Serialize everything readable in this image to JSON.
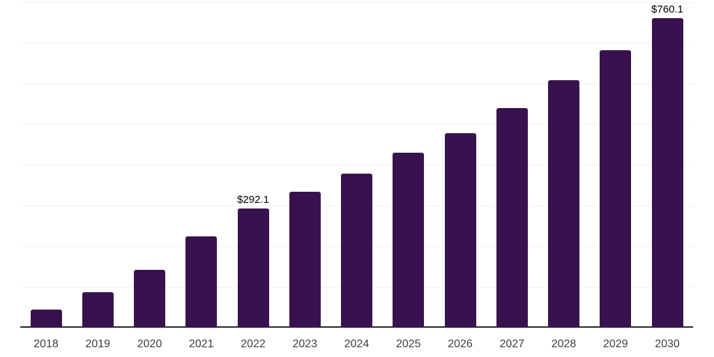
{
  "chart_data": {
    "type": "bar",
    "title": "",
    "xlabel": "",
    "ylabel": "",
    "categories": [
      "2018",
      "2019",
      "2020",
      "2021",
      "2022",
      "2023",
      "2024",
      "2025",
      "2026",
      "2027",
      "2028",
      "2029",
      "2030"
    ],
    "values": [
      45,
      87,
      142,
      224,
      292.1,
      334,
      378,
      430,
      478,
      540,
      608,
      681,
      760.1
    ],
    "data_labels": {
      "4": "$292.1",
      "12": "$760.1"
    },
    "ylim": [
      0,
      800
    ],
    "gridline_values": [
      100,
      200,
      300,
      400,
      500,
      600,
      700,
      800
    ],
    "grid": "horizontal-only",
    "legend": "none",
    "y_axis_labels": "none",
    "colors": {
      "bar_fill": "#38124E",
      "gridline": "#f1f1f2",
      "axis_line": "#262626",
      "tick_label": "#3d3d3d",
      "data_label": "#000000",
      "background": "#ffffff"
    }
  }
}
